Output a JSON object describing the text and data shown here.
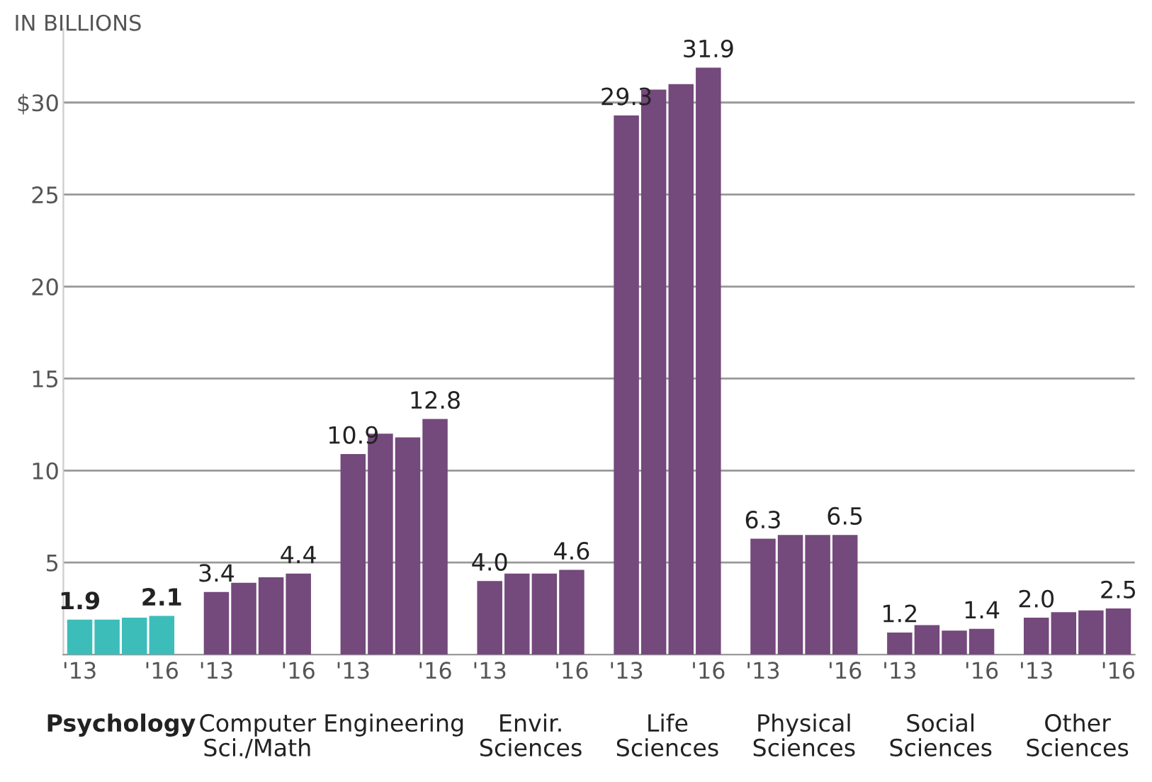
{
  "chart_data": {
    "type": "bar",
    "ylabel": "IN BILLIONS",
    "categories": [
      "'13",
      null,
      null,
      "'16",
      null,
      "'13",
      null,
      null,
      "'16",
      null,
      "'13",
      null,
      null,
      "'16",
      null,
      "'13",
      null,
      null,
      "'16",
      null,
      "'13",
      null,
      null,
      "'16",
      null,
      "'13",
      null,
      null,
      "'16",
      null,
      "'13",
      null,
      null,
      "'16",
      null,
      "'13",
      null,
      null,
      "'16"
    ],
    "values": [
      1.9,
      1.9,
      2.0,
      2.1,
      null,
      3.4,
      3.9,
      4.2,
      4.4,
      null,
      10.9,
      12.0,
      11.8,
      12.8,
      null,
      4.0,
      4.4,
      4.4,
      4.6,
      null,
      29.3,
      30.7,
      31.0,
      31.9,
      null,
      6.3,
      6.5,
      6.5,
      6.5,
      null,
      1.2,
      1.6,
      1.3,
      1.4,
      null,
      2.0,
      2.3,
      2.4,
      2.5
    ],
    "value_labels": [
      "1.9",
      null,
      null,
      "2.1",
      null,
      "3.4",
      null,
      null,
      "4.4",
      null,
      "10.9",
      null,
      null,
      "12.8",
      null,
      "4.0",
      null,
      null,
      "4.6",
      null,
      "29.3",
      null,
      null,
      "31.9",
      null,
      "6.3",
      null,
      null,
      "6.5",
      null,
      "1.2",
      null,
      null,
      "1.4",
      null,
      "2.0",
      null,
      null,
      "2.5"
    ],
    "colors": [
      "#3dbdb9",
      "#3dbdb9",
      "#3dbdb9",
      "#3dbdb9",
      null,
      "#74497c",
      "#74497c",
      "#74497c",
      "#74497c",
      null,
      "#74497c",
      "#74497c",
      "#74497c",
      "#74497c",
      null,
      "#74497c",
      "#74497c",
      "#74497c",
      "#74497c",
      null,
      "#74497c",
      "#74497c",
      "#74497c",
      "#74497c",
      null,
      "#74497c",
      "#74497c",
      "#74497c",
      "#74497c",
      null,
      "#74497c",
      "#74497c",
      "#74497c",
      "#74497c",
      null,
      "#74497c",
      "#74497c",
      "#74497c",
      "#74497c"
    ],
    "ylim": [
      0,
      34
    ],
    "yticks": [
      5,
      10,
      15,
      20,
      25,
      {
        "value": 30,
        "label": "$30"
      }
    ],
    "grid": "y",
    "annotations": [
      "Psychology",
      "Computer\nSci./Math",
      "Engineering",
      "Envir.\nSciences",
      "Life\nSciences",
      "Physical\nSciences",
      "Social\nSciences",
      "Other\nSciences"
    ]
  }
}
